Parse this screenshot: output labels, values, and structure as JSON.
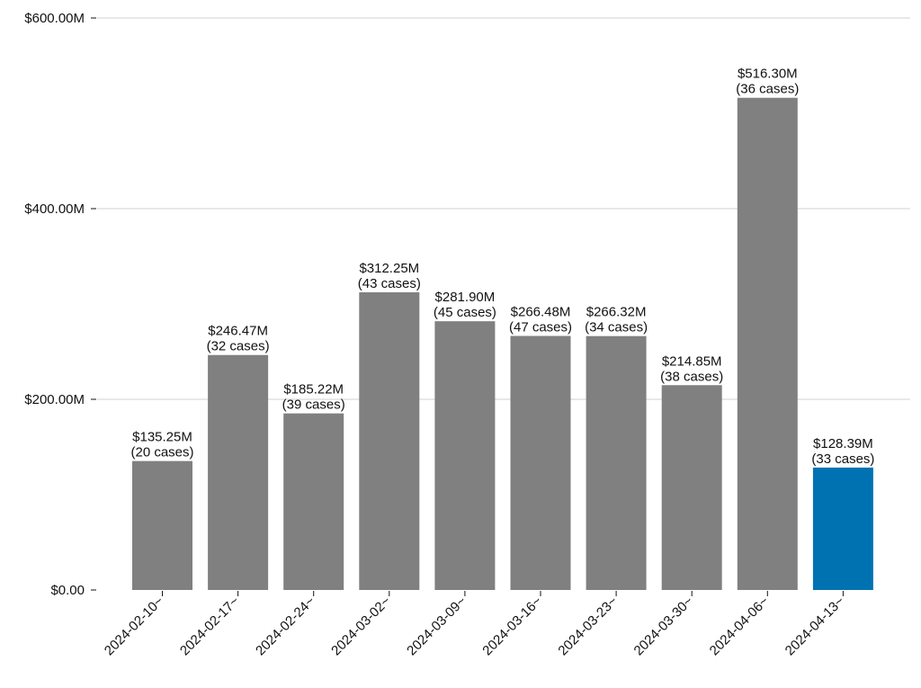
{
  "chart_data": {
    "type": "bar",
    "title": "",
    "xlabel": "",
    "ylabel": "",
    "categories": [
      "2024-02-10~",
      "2024-02-17~",
      "2024-02-24~",
      "2024-03-02~",
      "2024-03-09~",
      "2024-03-16~",
      "2024-03-23~",
      "2024-03-30~",
      "2024-04-06~",
      "2024-04-13~"
    ],
    "values": [
      135.25,
      246.47,
      185.22,
      312.25,
      281.9,
      266.48,
      266.32,
      214.85,
      516.3,
      128.39
    ],
    "value_labels": [
      "$135.25M",
      "$246.47M",
      "$185.22M",
      "$312.25M",
      "$281.90M",
      "$266.48M",
      "$266.32M",
      "$214.85M",
      "$516.30M",
      "$128.39M"
    ],
    "case_labels": [
      "(20 cases)",
      "(32 cases)",
      "(39 cases)",
      "(43 cases)",
      "(45 cases)",
      "(47 cases)",
      "(34 cases)",
      "(38 cases)",
      "(36 cases)",
      "(33 cases)"
    ],
    "cases": [
      20,
      32,
      39,
      43,
      45,
      47,
      34,
      38,
      36,
      33
    ],
    "value_unit": "$M",
    "ylim": [
      0,
      600
    ],
    "yticks": [
      0,
      200,
      400,
      600
    ],
    "ytick_labels": [
      "$0.00",
      "$200.00M",
      "$400.00M",
      "$600.00M"
    ],
    "grid": "horizontal",
    "legend": "none",
    "colors": {
      "default_bar": "#808080",
      "highlight_bar": "#0072b2",
      "grid": "#d0d0d0",
      "text": "#111111"
    },
    "highlight_index": 9
  }
}
